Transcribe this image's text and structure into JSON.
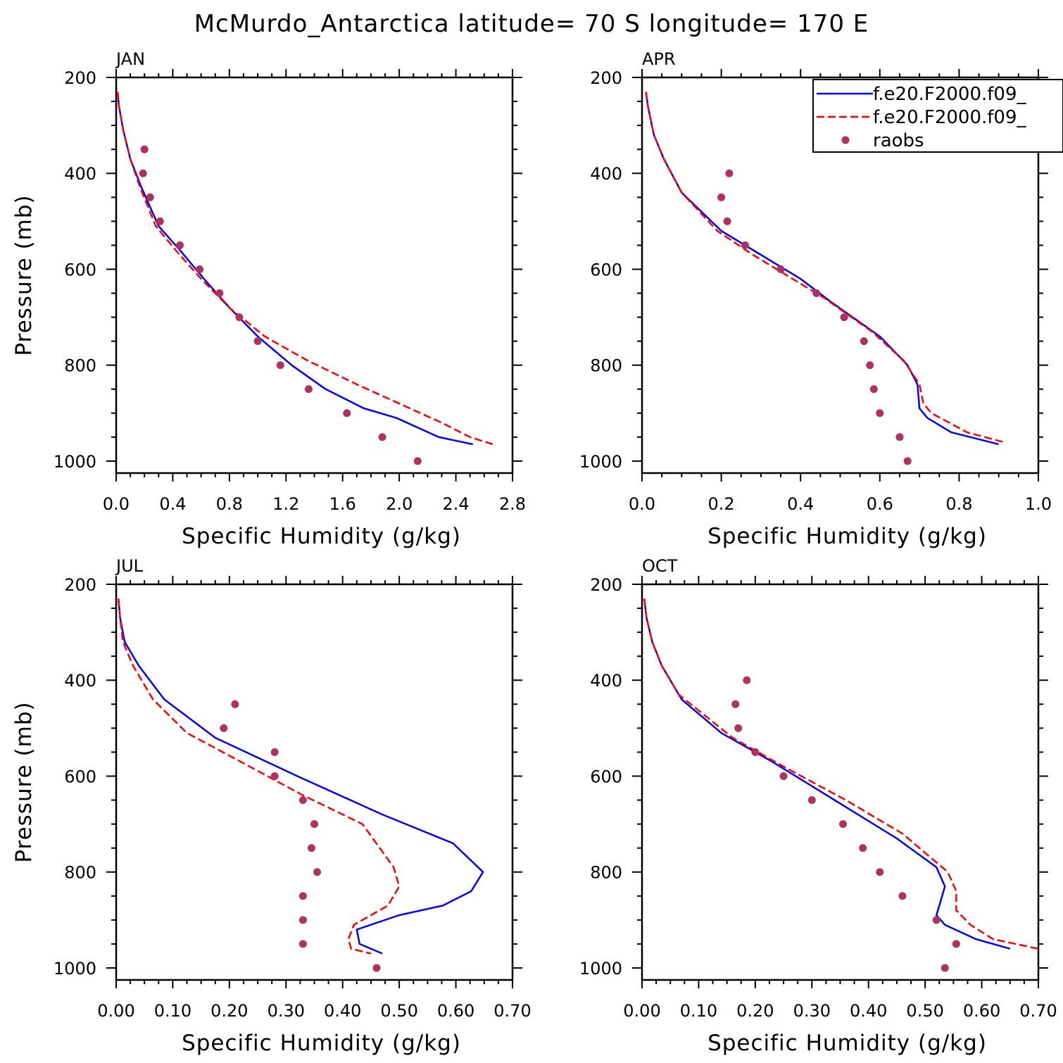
{
  "title": "McMurdo_Antarctica  latitude= 70 S longitude= 170 E",
  "legend": {
    "location": "top-right of APR panel",
    "entries": [
      {
        "label": "f.e20.F2000.f09_",
        "style": "solid",
        "color": "#0000ff"
      },
      {
        "label": "f.e20.F2000.f09_",
        "style": "dashed",
        "color": "#ff0000"
      },
      {
        "label": "raobs",
        "style": "dot",
        "color": "#b03060"
      }
    ]
  },
  "chart_data": [
    {
      "type": "line",
      "panel": "JAN",
      "xlabel": "Specific Humidity (g/kg)",
      "ylabel": "Pressure (mb)",
      "xlim": [
        0,
        2.8
      ],
      "ylim": [
        1025,
        200
      ],
      "xticks": [
        0,
        0.4,
        0.8,
        1.2,
        1.6,
        2.0,
        2.4,
        2.8
      ],
      "xtick_labels": [
        "0.0",
        "0.4",
        "0.8",
        "1.2",
        "1.6",
        "2.0",
        "2.4",
        "2.8"
      ],
      "yticks": [
        200,
        400,
        600,
        800,
        1000
      ],
      "ytick_labels": [
        "200",
        "400",
        "600",
        "800",
        "1000"
      ],
      "series": [
        {
          "name": "f.e20.F2000.f09_ (solid)",
          "color": "#0000ff",
          "style": "solid",
          "x": [
            0.01,
            0.02,
            0.05,
            0.1,
            0.18,
            0.3,
            0.45,
            0.62,
            0.8,
            1.0,
            1.24,
            1.48,
            1.75,
            1.98,
            2.28,
            2.52
          ],
          "y": [
            230,
            260,
            310,
            370,
            430,
            510,
            560,
            620,
            680,
            740,
            800,
            850,
            890,
            910,
            950,
            965
          ]
        },
        {
          "name": "f.e20.F2000.f09_ (dashed)",
          "color": "#ff0000",
          "style": "dashed",
          "x": [
            0.01,
            0.02,
            0.05,
            0.1,
            0.17,
            0.28,
            0.42,
            0.6,
            0.8,
            1.05,
            1.35,
            1.7,
            2.0,
            2.3,
            2.5,
            2.66
          ],
          "y": [
            230,
            260,
            310,
            370,
            430,
            510,
            560,
            620,
            680,
            740,
            790,
            840,
            880,
            920,
            950,
            965
          ]
        },
        {
          "name": "raobs",
          "color": "#b03060",
          "style": "dot",
          "x": [
            0.2,
            0.19,
            0.24,
            0.31,
            0.45,
            0.59,
            0.73,
            0.87,
            1.0,
            1.16,
            1.36,
            1.63,
            1.88,
            2.13
          ],
          "y": [
            350,
            400,
            450,
            500,
            550,
            600,
            650,
            700,
            750,
            800,
            850,
            900,
            950,
            1000
          ]
        }
      ]
    },
    {
      "type": "line",
      "panel": "APR",
      "xlabel": "Specific Humidity (g/kg)",
      "ylabel": "",
      "xlim": [
        0,
        1.0
      ],
      "ylim": [
        1025,
        200
      ],
      "xticks": [
        0,
        0.2,
        0.4,
        0.6,
        0.8,
        1.0
      ],
      "xtick_labels": [
        "0.0",
        "0.2",
        "0.4",
        "0.6",
        "0.8",
        "1.0"
      ],
      "yticks": [
        200,
        400,
        600,
        800,
        1000
      ],
      "ytick_labels": [
        "200",
        "400",
        "600",
        "800",
        "1000"
      ],
      "series": [
        {
          "name": "f.e20.F2000.f09_ (solid)",
          "color": "#0000ff",
          "style": "solid",
          "x": [
            0.01,
            0.015,
            0.03,
            0.055,
            0.1,
            0.2,
            0.3,
            0.4,
            0.48,
            0.6,
            0.67,
            0.695,
            0.7,
            0.72,
            0.78,
            0.9
          ],
          "y": [
            230,
            260,
            320,
            370,
            440,
            520,
            570,
            620,
            670,
            740,
            800,
            840,
            890,
            910,
            940,
            965
          ]
        },
        {
          "name": "f.e20.F2000.f09_ (dashed)",
          "color": "#ff0000",
          "style": "dashed",
          "x": [
            0.01,
            0.015,
            0.03,
            0.055,
            0.1,
            0.19,
            0.28,
            0.38,
            0.46,
            0.58,
            0.66,
            0.7,
            0.71,
            0.73,
            0.82,
            0.91
          ],
          "y": [
            230,
            260,
            320,
            370,
            440,
            520,
            570,
            620,
            660,
            730,
            790,
            840,
            880,
            900,
            940,
            960
          ]
        },
        {
          "name": "raobs",
          "color": "#b03060",
          "style": "dot",
          "x": [
            0.22,
            0.2,
            0.215,
            0.26,
            0.35,
            0.44,
            0.51,
            0.56,
            0.575,
            0.585,
            0.6,
            0.65,
            0.67
          ],
          "y": [
            400,
            450,
            500,
            550,
            600,
            650,
            700,
            750,
            800,
            850,
            900,
            950,
            1000
          ]
        }
      ]
    },
    {
      "type": "line",
      "panel": "JUL",
      "xlabel": "Specific Humidity (g/kg)",
      "ylabel": "Pressure (mb)",
      "xlim": [
        0,
        0.7
      ],
      "ylim": [
        1025,
        200
      ],
      "xticks": [
        0,
        0.1,
        0.2,
        0.3,
        0.4,
        0.5,
        0.6,
        0.7
      ],
      "xtick_labels": [
        "0.00",
        "0.10",
        "0.20",
        "0.30",
        "0.40",
        "0.50",
        "0.60",
        "0.70"
      ],
      "yticks": [
        200,
        400,
        600,
        800,
        1000
      ],
      "ytick_labels": [
        "200",
        "400",
        "600",
        "800",
        "1000"
      ],
      "series": [
        {
          "name": "f.e20.F2000.f09_ (solid)",
          "color": "#0000ff",
          "style": "solid",
          "x": [
            0.004,
            0.007,
            0.015,
            0.04,
            0.085,
            0.175,
            0.32,
            0.47,
            0.595,
            0.648,
            0.627,
            0.577,
            0.5,
            0.425,
            0.43,
            0.47
          ],
          "y": [
            230,
            270,
            320,
            370,
            440,
            520,
            600,
            680,
            740,
            800,
            840,
            870,
            890,
            920,
            950,
            970
          ]
        },
        {
          "name": "f.e20.F2000.f09_ (dashed)",
          "color": "#ff0000",
          "style": "dashed",
          "x": [
            0.004,
            0.007,
            0.012,
            0.03,
            0.065,
            0.125,
            0.22,
            0.33,
            0.435,
            0.49,
            0.5,
            0.48,
            0.42,
            0.41,
            0.415,
            0.45
          ],
          "y": [
            230,
            270,
            320,
            370,
            440,
            510,
            570,
            640,
            700,
            790,
            830,
            870,
            910,
            940,
            960,
            970
          ]
        },
        {
          "name": "raobs",
          "color": "#b03060",
          "style": "dot",
          "x": [
            0.21,
            0.19,
            0.28,
            0.28,
            0.33,
            0.35,
            0.345,
            0.355,
            0.33,
            0.33,
            0.33,
            0.46
          ],
          "y": [
            450,
            500,
            550,
            600,
            650,
            700,
            750,
            800,
            850,
            900,
            950,
            1000
          ]
        }
      ]
    },
    {
      "type": "line",
      "panel": "OCT",
      "xlabel": "Specific Humidity (g/kg)",
      "ylabel": "",
      "xlim": [
        0,
        0.7
      ],
      "ylim": [
        1025,
        200
      ],
      "xticks": [
        0,
        0.1,
        0.2,
        0.3,
        0.4,
        0.5,
        0.6,
        0.7
      ],
      "xtick_labels": [
        "0.00",
        "0.10",
        "0.20",
        "0.30",
        "0.40",
        "0.50",
        "0.60",
        "0.70"
      ],
      "yticks": [
        200,
        400,
        600,
        800,
        1000
      ],
      "ytick_labels": [
        "200",
        "400",
        "600",
        "800",
        "1000"
      ],
      "series": [
        {
          "name": "f.e20.F2000.f09_ (solid)",
          "color": "#0000ff",
          "style": "solid",
          "x": [
            0.004,
            0.008,
            0.018,
            0.035,
            0.07,
            0.14,
            0.23,
            0.34,
            0.45,
            0.52,
            0.535,
            0.525,
            0.52,
            0.535,
            0.59,
            0.65
          ],
          "y": [
            230,
            270,
            320,
            370,
            440,
            510,
            570,
            650,
            730,
            790,
            830,
            870,
            890,
            910,
            940,
            960
          ]
        },
        {
          "name": "f.e20.F2000.f09_ (dashed)",
          "color": "#ff0000",
          "style": "dashed",
          "x": [
            0.004,
            0.008,
            0.018,
            0.035,
            0.065,
            0.16,
            0.25,
            0.36,
            0.46,
            0.54,
            0.555,
            0.555,
            0.58,
            0.62,
            0.7
          ],
          "y": [
            230,
            270,
            320,
            370,
            430,
            520,
            580,
            650,
            720,
            800,
            840,
            880,
            910,
            940,
            960
          ]
        },
        {
          "name": "raobs",
          "color": "#b03060",
          "style": "dot",
          "x": [
            0.185,
            0.165,
            0.17,
            0.2,
            0.25,
            0.3,
            0.355,
            0.39,
            0.42,
            0.46,
            0.52,
            0.555,
            0.535
          ],
          "y": [
            400,
            450,
            500,
            550,
            600,
            650,
            700,
            750,
            800,
            850,
            900,
            950,
            1000
          ]
        }
      ]
    }
  ]
}
